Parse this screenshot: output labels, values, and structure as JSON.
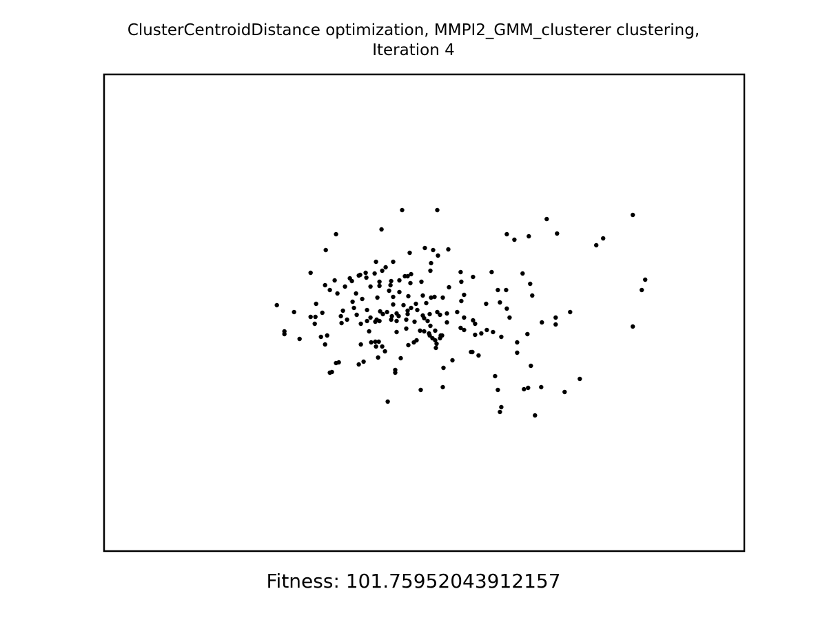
{
  "title_line1": "ClusterCentroidDistance optimization, MMPI2_GMM_clusterer clustering,",
  "title_line2": "Iteration 4",
  "fitness_text": "Fitness: 101.75952043912157",
  "chart_data": {
    "type": "scatter",
    "title": "ClusterCentroidDistance optimization, MMPI2_GMM_clusterer clustering, Iteration 4",
    "xlabel": "",
    "ylabel": "",
    "axes_visible": false,
    "grid": false,
    "xlim": [
      150,
      1080
    ],
    "ylim": [
      800,
      108
    ],
    "marker_color": "#000000",
    "points": [
      [
        583,
        305
      ],
      [
        634,
        305
      ],
      [
        918,
        312
      ],
      [
        793,
        318
      ],
      [
        553,
        333
      ],
      [
        487,
        340
      ],
      [
        735,
        340
      ],
      [
        767,
        343
      ],
      [
        808,
        339
      ],
      [
        746,
        348
      ],
      [
        875,
        346
      ],
      [
        865,
        356
      ],
      [
        472,
        363
      ],
      [
        616,
        360
      ],
      [
        628,
        363
      ],
      [
        650,
        362
      ],
      [
        594,
        367
      ],
      [
        635,
        371
      ],
      [
        570,
        380
      ],
      [
        545,
        380
      ],
      [
        625,
        382
      ],
      [
        559,
        388
      ],
      [
        450,
        396
      ],
      [
        668,
        395
      ],
      [
        713,
        395
      ],
      [
        758,
        397
      ],
      [
        530,
        396
      ],
      [
        543,
        397
      ],
      [
        554,
        393
      ],
      [
        520,
        400
      ],
      [
        522,
        399
      ],
      [
        531,
        403
      ],
      [
        587,
        401
      ],
      [
        596,
        398
      ],
      [
        591,
        401
      ],
      [
        686,
        402
      ],
      [
        624,
        393
      ],
      [
        507,
        404
      ],
      [
        510,
        408
      ],
      [
        550,
        409
      ],
      [
        567,
        408
      ],
      [
        579,
        407
      ],
      [
        595,
        411
      ],
      [
        611,
        409
      ],
      [
        669,
        409
      ],
      [
        485,
        407
      ],
      [
        936,
        406
      ],
      [
        471,
        414
      ],
      [
        500,
        416
      ],
      [
        537,
        416
      ],
      [
        550,
        415
      ],
      [
        566,
        414
      ],
      [
        769,
        412
      ],
      [
        651,
        417
      ],
      [
        478,
        421
      ],
      [
        489,
        426
      ],
      [
        516,
        426
      ],
      [
        564,
        422
      ],
      [
        579,
        424
      ],
      [
        722,
        421
      ],
      [
        734,
        421
      ],
      [
        931,
        421
      ],
      [
        673,
        428
      ],
      [
        772,
        429
      ],
      [
        525,
        434
      ],
      [
        547,
        432
      ],
      [
        570,
        431
      ],
      [
        592,
        430
      ],
      [
        613,
        429
      ],
      [
        625,
        432
      ],
      [
        630,
        431
      ],
      [
        642,
        432
      ],
      [
        669,
        437
      ],
      [
        401,
        443
      ],
      [
        458,
        441
      ],
      [
        511,
        438
      ],
      [
        570,
        442
      ],
      [
        585,
        443
      ],
      [
        603,
        441
      ],
      [
        618,
        440
      ],
      [
        705,
        441
      ],
      [
        725,
        439
      ],
      [
        591,
        451
      ],
      [
        596,
        447
      ],
      [
        513,
        447
      ],
      [
        532,
        450
      ],
      [
        551,
        452
      ],
      [
        561,
        453
      ],
      [
        575,
        455
      ],
      [
        605,
        450
      ],
      [
        634,
        453
      ],
      [
        663,
        453
      ],
      [
        426,
        453
      ],
      [
        467,
        454
      ],
      [
        497,
        451
      ],
      [
        555,
        456
      ],
      [
        568,
        459
      ],
      [
        578,
        459
      ],
      [
        591,
        456
      ],
      [
        613,
        458
      ],
      [
        623,
        456
      ],
      [
        638,
        457
      ],
      [
        735,
        448
      ],
      [
        827,
        453
      ],
      [
        450,
        460
      ],
      [
        457,
        460
      ],
      [
        494,
        459
      ],
      [
        503,
        464
      ],
      [
        517,
        457
      ],
      [
        537,
        461
      ],
      [
        546,
        464
      ],
      [
        567,
        464
      ],
      [
        589,
        464
      ],
      [
        615,
        462
      ],
      [
        648,
        455
      ],
      [
        673,
        461
      ],
      [
        686,
        465
      ],
      [
        739,
        461
      ],
      [
        806,
        461
      ],
      [
        456,
        470
      ],
      [
        495,
        469
      ],
      [
        523,
        470
      ],
      [
        532,
        466
      ],
      [
        544,
        467
      ],
      [
        550,
        466
      ],
      [
        575,
        466
      ],
      [
        601,
        467
      ],
      [
        620,
        466
      ],
      [
        648,
        468
      ],
      [
        689,
        470
      ],
      [
        786,
        468
      ],
      [
        806,
        471
      ],
      [
        918,
        474
      ],
      [
        412,
        481
      ],
      [
        412,
        485
      ],
      [
        434,
        492
      ],
      [
        465,
        489
      ],
      [
        474,
        487
      ],
      [
        535,
        481
      ],
      [
        575,
        482
      ],
      [
        589,
        477
      ],
      [
        609,
        480
      ],
      [
        615,
        481
      ],
      [
        624,
        473
      ],
      [
        622,
        484
      ],
      [
        631,
        480
      ],
      [
        639,
        487
      ],
      [
        668,
        476
      ],
      [
        673,
        479
      ],
      [
        689,
        486
      ],
      [
        698,
        484
      ],
      [
        706,
        479
      ],
      [
        715,
        482
      ],
      [
        727,
        489
      ],
      [
        765,
        485
      ],
      [
        471,
        500
      ],
      [
        523,
        500
      ],
      [
        538,
        497
      ],
      [
        544,
        496
      ],
      [
        549,
        496
      ],
      [
        600,
        497
      ],
      [
        604,
        494
      ],
      [
        623,
        487
      ],
      [
        627,
        491
      ],
      [
        631,
        494
      ],
      [
        633,
        499
      ],
      [
        638,
        491
      ],
      [
        641,
        487
      ],
      [
        592,
        501
      ],
      [
        545,
        503
      ],
      [
        554,
        503
      ],
      [
        632,
        505
      ],
      [
        750,
        497
      ],
      [
        558,
        510
      ],
      [
        683,
        511
      ],
      [
        685,
        511
      ],
      [
        750,
        512
      ],
      [
        548,
        519
      ],
      [
        581,
        520
      ],
      [
        694,
        516
      ],
      [
        487,
        527
      ],
      [
        491,
        526
      ],
      [
        520,
        529
      ],
      [
        527,
        525
      ],
      [
        656,
        523
      ],
      [
        573,
        537
      ],
      [
        573,
        541
      ],
      [
        643,
        534
      ],
      [
        770,
        531
      ],
      [
        478,
        541
      ],
      [
        481,
        540
      ],
      [
        718,
        546
      ],
      [
        841,
        550
      ],
      [
        610,
        566
      ],
      [
        642,
        562
      ],
      [
        722,
        566
      ],
      [
        760,
        565
      ],
      [
        766,
        563
      ],
      [
        785,
        562
      ],
      [
        819,
        569
      ],
      [
        562,
        583
      ],
      [
        727,
        591
      ],
      [
        725,
        598
      ],
      [
        776,
        603
      ]
    ]
  }
}
